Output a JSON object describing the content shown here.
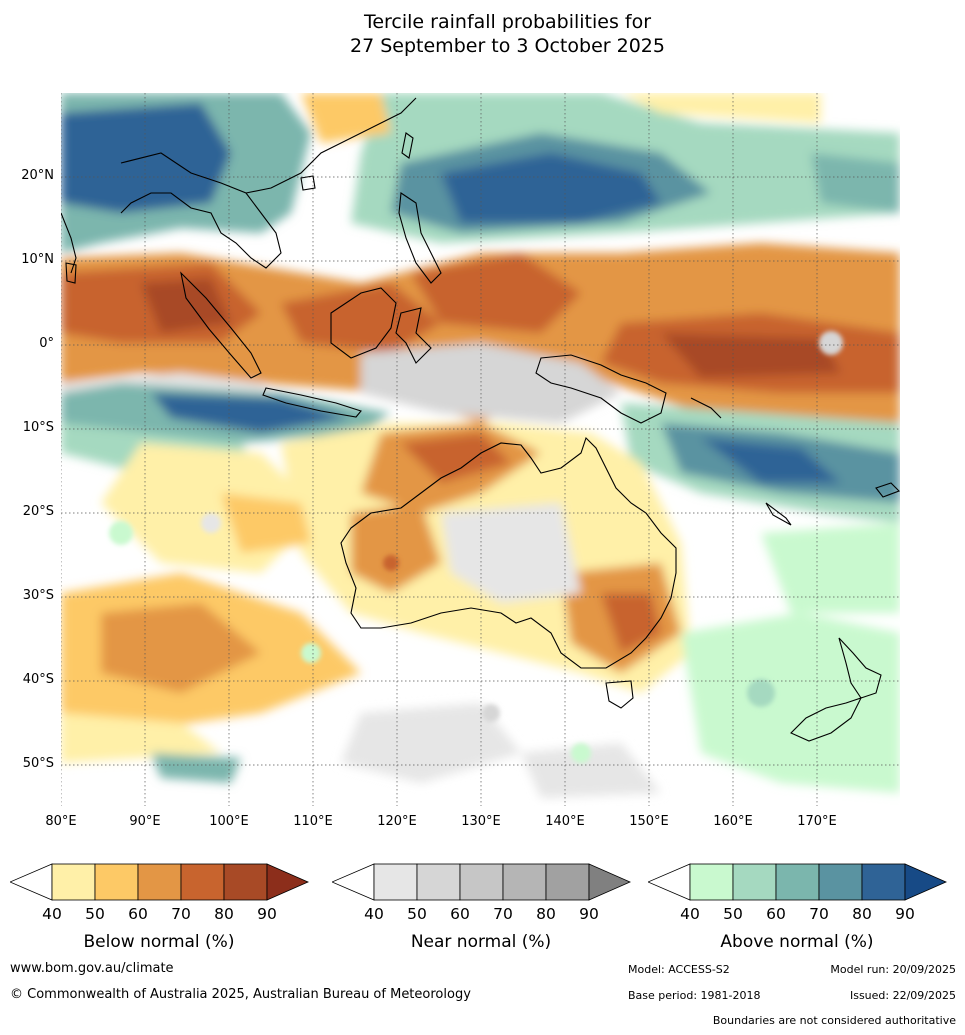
{
  "title": {
    "line1": "Tercile rainfall probabilities for",
    "line2": "27 September to 3 October 2025"
  },
  "map": {
    "lat_labels": [
      "20°N",
      "10°N",
      "0°",
      "10°S",
      "20°S",
      "30°S",
      "40°S",
      "50°S"
    ],
    "lon_labels": [
      "80°E",
      "90°E",
      "100°E",
      "110°E",
      "120°E",
      "130°E",
      "140°E",
      "150°E",
      "160°E",
      "170°E"
    ]
  },
  "legends": {
    "below": {
      "title": "Below normal (%)",
      "ticks": [
        "40",
        "50",
        "60",
        "70",
        "80",
        "90"
      ],
      "colors": [
        "#fff0a8",
        "#fdc966",
        "#e39645",
        "#c8642e",
        "#a84a26",
        "#8c2e1b"
      ]
    },
    "near": {
      "title": "Near normal (%)",
      "ticks": [
        "40",
        "50",
        "60",
        "70",
        "80",
        "90"
      ],
      "colors": [
        "#e6e6e6",
        "#d6d6d6",
        "#c6c6c6",
        "#b5b5b5",
        "#a1a1a1",
        "#808080"
      ]
    },
    "above": {
      "title": "Above normal (%)",
      "ticks": [
        "40",
        "50",
        "60",
        "70",
        "80",
        "90"
      ],
      "colors": [
        "#c9f9cf",
        "#a5d9c0",
        "#7bb6ad",
        "#5a93a1",
        "#2f6396",
        "#174a86"
      ]
    }
  },
  "footer": {
    "website": "www.bom.gov.au/climate",
    "copyright": "© Commonwealth of Australia 2025, Australian Bureau of Meteorology",
    "model": "Model: ACCESS-S2",
    "model_run": "Model run: 20/09/2025",
    "base_period": "Base period: 1981-2018",
    "issued": "Issued: 22/09/2025",
    "disclaimer": "Boundaries are not considered authoritative"
  }
}
